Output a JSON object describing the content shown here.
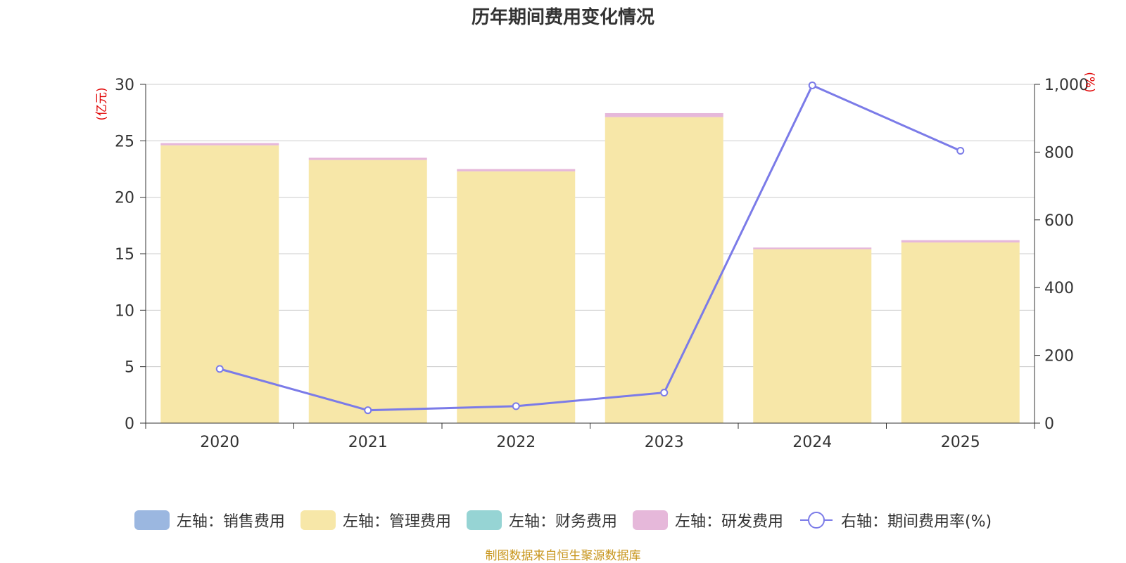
{
  "chart_data": {
    "type": "bar",
    "title": "历年期间费用变化情况",
    "categories": [
      "2020",
      "2021",
      "2022",
      "2023",
      "2024",
      "2025"
    ],
    "y_left": {
      "unit": "(亿元)",
      "ylim": [
        0,
        30
      ],
      "ticks": [
        "0",
        "5",
        "10",
        "15",
        "20",
        "25",
        "30"
      ]
    },
    "y_right": {
      "unit": "(%)",
      "ylim": [
        0,
        1000
      ],
      "ticks": [
        "0",
        "200",
        "400",
        "600",
        "800",
        "1,000"
      ]
    },
    "series": [
      {
        "name": "左轴：销售费用",
        "axis": "left",
        "stack": true,
        "color": "#9bb7e0",
        "values": [
          0,
          0,
          0,
          0,
          0,
          0
        ]
      },
      {
        "name": "左轴：管理费用",
        "axis": "left",
        "stack": true,
        "color": "#f7e7a8",
        "values": [
          24.6,
          23.3,
          22.3,
          27.1,
          15.4,
          16.0
        ]
      },
      {
        "name": "左轴：财务费用",
        "axis": "left",
        "stack": true,
        "color": "#96d4d4",
        "values": [
          0,
          0,
          0,
          0,
          0,
          0
        ]
      },
      {
        "name": "左轴：研发费用",
        "axis": "left",
        "stack": true,
        "color": "#e6b8da",
        "values": [
          0.2,
          0.2,
          0.2,
          0.35,
          0.15,
          0.2
        ]
      },
      {
        "name": "右轴：期间费用率(%)",
        "axis": "right",
        "type": "line",
        "color": "#7b7be8",
        "values": [
          160,
          38,
          50,
          90,
          997,
          804
        ]
      }
    ],
    "grid": true,
    "legend_position": "bottom"
  },
  "source": "制图数据来自恒生聚源数据库"
}
